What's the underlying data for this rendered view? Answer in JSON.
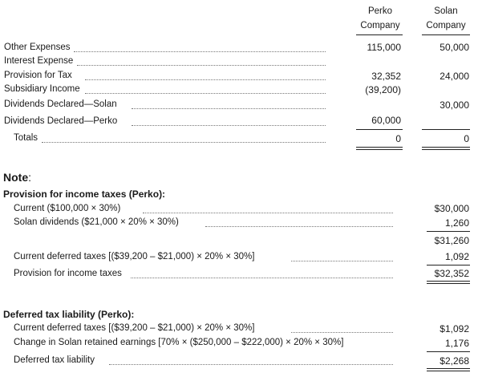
{
  "header": {
    "col1_line1": "Perko",
    "col1_line2": "Company",
    "col2_line1": "Solan",
    "col2_line2": "Company"
  },
  "rows": [
    {
      "label": "Other Expenses",
      "perko": "115,000",
      "solan": "50,000"
    },
    {
      "label": "Interest Expense",
      "perko": "",
      "solan": ""
    },
    {
      "label": "Provision for Tax",
      "perko": "32,352",
      "solan": "24,000"
    },
    {
      "label": "Subsidiary Income",
      "perko": "(39,200)",
      "solan": ""
    },
    {
      "label": "Dividends Declared—Solan",
      "perko": "",
      "solan": "30,000"
    },
    {
      "label": "Dividends Declared—Perko",
      "perko": "60,000",
      "solan": ""
    },
    {
      "label": "Totals",
      "perko": "0",
      "solan": "0"
    }
  ],
  "note": {
    "title": "Note",
    "colon": ":",
    "section1": {
      "title": "Provision for income taxes (Perko):",
      "lines": [
        {
          "label": "Current ($100,000 × 30%)",
          "value": "$30,000"
        },
        {
          "label": "Solan dividends ($21,000 × 20% × 30%)",
          "value": "1,260"
        },
        {
          "label": "",
          "value": "$31,260"
        },
        {
          "label": "Current deferred taxes [($39,200 – $21,000) × 20% × 30%]",
          "value": "1,092"
        },
        {
          "label": "Provision for income taxes",
          "value": "$32,352"
        }
      ]
    },
    "section2": {
      "title": "Deferred tax liability (Perko):",
      "lines": [
        {
          "label": "Current deferred taxes [($39,200 – $21,000) × 20% × 30%]",
          "value": "$1,092"
        },
        {
          "label": "Change in Solan retained earnings [70% × ($250,000 – $222,000) × 20% × 30%]",
          "value": "1,176"
        },
        {
          "label": "Deferred tax liability",
          "value": "$2,268"
        }
      ]
    }
  }
}
